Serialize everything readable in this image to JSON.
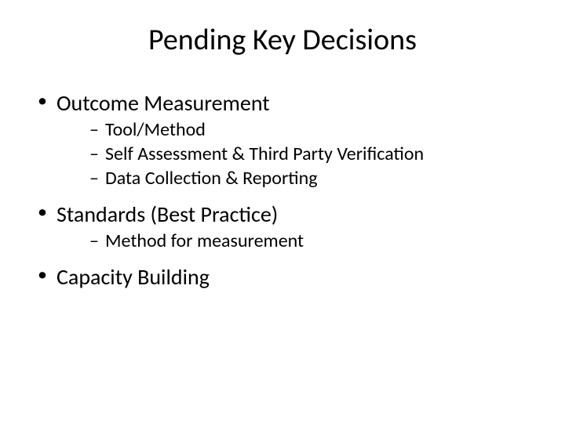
{
  "title": "Pending Key Decisions",
  "bullets": [
    {
      "label": "Outcome Measurement",
      "children": [
        "Tool/Method",
        "Self Assessment & Third Party Verification",
        "Data Collection & Reporting"
      ]
    },
    {
      "label": "Standards (Best Practice)",
      "children": [
        "Method for measurement"
      ]
    },
    {
      "label": "Capacity Building",
      "children": []
    }
  ],
  "colors": {
    "background": "#ffffff",
    "text": "#000000"
  },
  "typography": {
    "title_fontsize": 38,
    "level1_fontsize": 28,
    "level2_fontsize": 24,
    "font_family": "Calibri"
  }
}
